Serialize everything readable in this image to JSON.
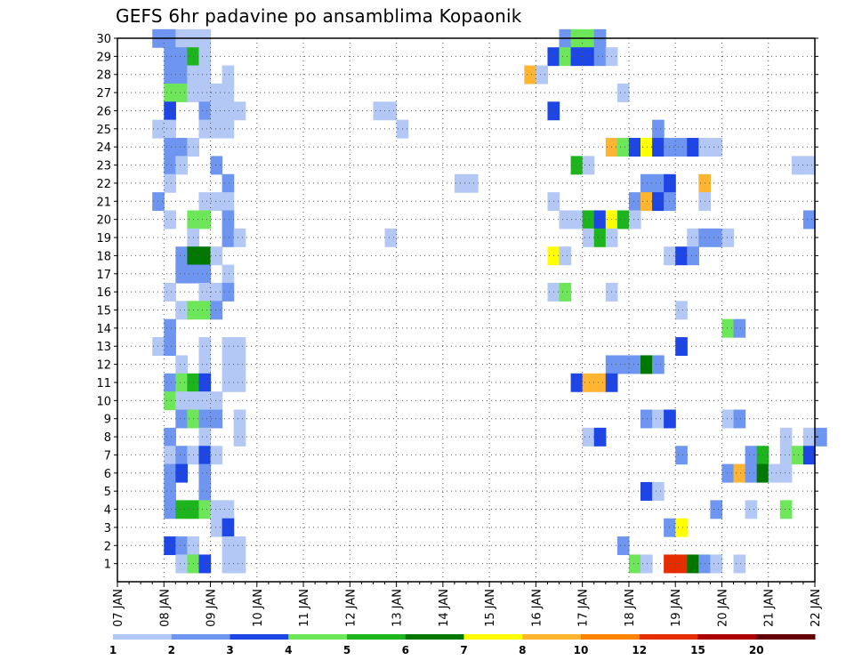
{
  "chart_data": {
    "type": "heatmap",
    "title": "GEFS 6hr padavine po ansamblima Kopaonik",
    "xlabel": "",
    "ylabel": "",
    "x_range": [
      "07 JAN 00h",
      "22 JAN 00h"
    ],
    "x_step_hours": 6,
    "x_tick_labels": [
      "07 JAN",
      "08 JAN",
      "09 JAN",
      "10 JAN",
      "11 JAN",
      "12 JAN",
      "13 JAN",
      "14 JAN",
      "15 JAN",
      "16 JAN",
      "17 JAN",
      "18 JAN",
      "19 JAN",
      "20 JAN",
      "21 JAN",
      "22 JAN"
    ],
    "y_range": [
      0,
      30
    ],
    "y_tick_labels": [
      "1",
      "2",
      "3",
      "4",
      "5",
      "6",
      "7",
      "8",
      "9",
      "10",
      "11",
      "12",
      "13",
      "14",
      "15",
      "16",
      "17",
      "18",
      "19",
      "20",
      "21",
      "22",
      "23",
      "24",
      "25",
      "26",
      "27",
      "28",
      "29",
      "30"
    ],
    "grid": true,
    "colorbar": {
      "levels": [
        1,
        2,
        3,
        4,
        5,
        6,
        7,
        8,
        10,
        12,
        15,
        20
      ],
      "level_labels": [
        "1",
        "2",
        "3",
        "4",
        "5",
        "6",
        "7",
        "8",
        "10",
        "12",
        "15",
        "20"
      ],
      "colors": [
        "#b4c8f5",
        "#6e96f0",
        "#1e46e6",
        "#6ee65a",
        "#1eb41e",
        "#007800",
        "#ffff00",
        "#ffb432",
        "#ff8200",
        "#e62d00",
        "#aa0000",
        "#640000"
      ]
    },
    "cells": [
      [
        30,
        3,
        2
      ],
      [
        30,
        4,
        2
      ],
      [
        30,
        5,
        1
      ],
      [
        30,
        6,
        1
      ],
      [
        30,
        7,
        1
      ],
      [
        30,
        38,
        2
      ],
      [
        30,
        39,
        4
      ],
      [
        30,
        40,
        4
      ],
      [
        30,
        41,
        2
      ],
      [
        29,
        4,
        2
      ],
      [
        29,
        5,
        2
      ],
      [
        29,
        6,
        5
      ],
      [
        29,
        7,
        1
      ],
      [
        29,
        37,
        3
      ],
      [
        29,
        38,
        4
      ],
      [
        29,
        39,
        3
      ],
      [
        29,
        40,
        3
      ],
      [
        29,
        41,
        2
      ],
      [
        29,
        42,
        1
      ],
      [
        28,
        4,
        2
      ],
      [
        28,
        5,
        2
      ],
      [
        28,
        6,
        1
      ],
      [
        28,
        7,
        1
      ],
      [
        28,
        9,
        1
      ],
      [
        28,
        35,
        8
      ],
      [
        28,
        36,
        1
      ],
      [
        27,
        4,
        4
      ],
      [
        27,
        5,
        4
      ],
      [
        27,
        6,
        1
      ],
      [
        27,
        7,
        1
      ],
      [
        27,
        8,
        1
      ],
      [
        27,
        9,
        1
      ],
      [
        27,
        43,
        1
      ],
      [
        26,
        4,
        3
      ],
      [
        26,
        7,
        2
      ],
      [
        26,
        8,
        1
      ],
      [
        26,
        9,
        1
      ],
      [
        26,
        10,
        1
      ],
      [
        26,
        22,
        1
      ],
      [
        26,
        23,
        1
      ],
      [
        26,
        37,
        3
      ],
      [
        25,
        3,
        1
      ],
      [
        25,
        4,
        1
      ],
      [
        25,
        7,
        1
      ],
      [
        25,
        8,
        1
      ],
      [
        25,
        9,
        1
      ],
      [
        25,
        24,
        1
      ],
      [
        25,
        46,
        2
      ],
      [
        24,
        4,
        2
      ],
      [
        24,
        5,
        2
      ],
      [
        24,
        6,
        1
      ],
      [
        24,
        42,
        8
      ],
      [
        24,
        43,
        4
      ],
      [
        24,
        44,
        3
      ],
      [
        24,
        45,
        7
      ],
      [
        24,
        46,
        3
      ],
      [
        24,
        47,
        2
      ],
      [
        24,
        48,
        2
      ],
      [
        24,
        49,
        3
      ],
      [
        24,
        50,
        1
      ],
      [
        24,
        51,
        1
      ],
      [
        23,
        4,
        2
      ],
      [
        23,
        5,
        1
      ],
      [
        23,
        8,
        2
      ],
      [
        23,
        39,
        5
      ],
      [
        23,
        40,
        1
      ],
      [
        23,
        58,
        1
      ],
      [
        23,
        59,
        1
      ],
      [
        22,
        4,
        1
      ],
      [
        22,
        9,
        2
      ],
      [
        22,
        29,
        1
      ],
      [
        22,
        30,
        1
      ],
      [
        22,
        45,
        2
      ],
      [
        22,
        46,
        2
      ],
      [
        22,
        47,
        3
      ],
      [
        22,
        50,
        8
      ],
      [
        21,
        3,
        2
      ],
      [
        21,
        7,
        1
      ],
      [
        21,
        8,
        1
      ],
      [
        21,
        9,
        1
      ],
      [
        21,
        37,
        1
      ],
      [
        21,
        44,
        2
      ],
      [
        21,
        45,
        8
      ],
      [
        21,
        46,
        3
      ],
      [
        21,
        47,
        2
      ],
      [
        21,
        50,
        1
      ],
      [
        20,
        4,
        1
      ],
      [
        20,
        6,
        4
      ],
      [
        20,
        7,
        4
      ],
      [
        20,
        9,
        2
      ],
      [
        20,
        38,
        1
      ],
      [
        20,
        39,
        1
      ],
      [
        20,
        40,
        5
      ],
      [
        20,
        41,
        3
      ],
      [
        20,
        42,
        7
      ],
      [
        20,
        43,
        5
      ],
      [
        20,
        44,
        1
      ],
      [
        20,
        59,
        2
      ],
      [
        19,
        6,
        1
      ],
      [
        19,
        9,
        2
      ],
      [
        19,
        10,
        1
      ],
      [
        19,
        23,
        1
      ],
      [
        19,
        40,
        1
      ],
      [
        19,
        41,
        5
      ],
      [
        19,
        42,
        1
      ],
      [
        19,
        49,
        1
      ],
      [
        19,
        50,
        2
      ],
      [
        19,
        51,
        2
      ],
      [
        19,
        52,
        1
      ],
      [
        18,
        5,
        2
      ],
      [
        18,
        6,
        6
      ],
      [
        18,
        7,
        6
      ],
      [
        18,
        8,
        1
      ],
      [
        18,
        37,
        7
      ],
      [
        18,
        38,
        1
      ],
      [
        18,
        47,
        1
      ],
      [
        18,
        48,
        3
      ],
      [
        18,
        49,
        2
      ],
      [
        17,
        5,
        2
      ],
      [
        17,
        6,
        2
      ],
      [
        17,
        7,
        2
      ],
      [
        17,
        9,
        1
      ],
      [
        16,
        4,
        1
      ],
      [
        16,
        7,
        1
      ],
      [
        16,
        8,
        1
      ],
      [
        16,
        9,
        2
      ],
      [
        16,
        37,
        1
      ],
      [
        16,
        38,
        4
      ],
      [
        16,
        42,
        1
      ],
      [
        15,
        5,
        1
      ],
      [
        15,
        6,
        4
      ],
      [
        15,
        7,
        4
      ],
      [
        15,
        8,
        2
      ],
      [
        15,
        48,
        1
      ],
      [
        14,
        4,
        2
      ],
      [
        14,
        52,
        4
      ],
      [
        14,
        53,
        2
      ],
      [
        13,
        3,
        1
      ],
      [
        13,
        4,
        2
      ],
      [
        13,
        7,
        1
      ],
      [
        13,
        9,
        1
      ],
      [
        13,
        10,
        1
      ],
      [
        13,
        48,
        3
      ],
      [
        12,
        5,
        1
      ],
      [
        12,
        7,
        1
      ],
      [
        12,
        9,
        1
      ],
      [
        12,
        10,
        1
      ],
      [
        12,
        42,
        2
      ],
      [
        12,
        43,
        2
      ],
      [
        12,
        44,
        2
      ],
      [
        12,
        45,
        6
      ],
      [
        12,
        46,
        2
      ],
      [
        11,
        4,
        2
      ],
      [
        11,
        5,
        4
      ],
      [
        11,
        6,
        5
      ],
      [
        11,
        7,
        3
      ],
      [
        11,
        9,
        1
      ],
      [
        11,
        10,
        1
      ],
      [
        11,
        39,
        3
      ],
      [
        11,
        40,
        8
      ],
      [
        11,
        41,
        8
      ],
      [
        11,
        42,
        3
      ],
      [
        10,
        4,
        4
      ],
      [
        10,
        5,
        1
      ],
      [
        10,
        6,
        1
      ],
      [
        10,
        7,
        1
      ],
      [
        10,
        8,
        1
      ],
      [
        9,
        5,
        2
      ],
      [
        9,
        6,
        4
      ],
      [
        9,
        7,
        2
      ],
      [
        9,
        8,
        2
      ],
      [
        9,
        10,
        1
      ],
      [
        9,
        45,
        2
      ],
      [
        9,
        46,
        1
      ],
      [
        9,
        47,
        3
      ],
      [
        9,
        52,
        1
      ],
      [
        9,
        53,
        2
      ],
      [
        8,
        4,
        2
      ],
      [
        8,
        7,
        1
      ],
      [
        8,
        10,
        1
      ],
      [
        8,
        40,
        1
      ],
      [
        8,
        41,
        3
      ],
      [
        8,
        57,
        1
      ],
      [
        8,
        59,
        1
      ],
      [
        8,
        60,
        2
      ],
      [
        7,
        4,
        1
      ],
      [
        7,
        5,
        2
      ],
      [
        7,
        6,
        1
      ],
      [
        7,
        7,
        3
      ],
      [
        7,
        8,
        1
      ],
      [
        7,
        48,
        2
      ],
      [
        7,
        54,
        2
      ],
      [
        7,
        55,
        5
      ],
      [
        7,
        57,
        1
      ],
      [
        7,
        58,
        4
      ],
      [
        7,
        59,
        3
      ],
      [
        6,
        4,
        2
      ],
      [
        6,
        5,
        3
      ],
      [
        6,
        7,
        2
      ],
      [
        6,
        52,
        2
      ],
      [
        6,
        53,
        8
      ],
      [
        6,
        54,
        2
      ],
      [
        6,
        55,
        6
      ],
      [
        6,
        56,
        1
      ],
      [
        6,
        57,
        1
      ],
      [
        5,
        4,
        2
      ],
      [
        5,
        7,
        2
      ],
      [
        5,
        45,
        3
      ],
      [
        5,
        46,
        1
      ],
      [
        4,
        4,
        2
      ],
      [
        4,
        5,
        5
      ],
      [
        4,
        6,
        5
      ],
      [
        4,
        7,
        4
      ],
      [
        4,
        8,
        1
      ],
      [
        4,
        9,
        1
      ],
      [
        4,
        51,
        2
      ],
      [
        4,
        54,
        1
      ],
      [
        4,
        57,
        4
      ],
      [
        3,
        8,
        1
      ],
      [
        3,
        9,
        3
      ],
      [
        3,
        47,
        2
      ],
      [
        3,
        48,
        7
      ],
      [
        2,
        4,
        3
      ],
      [
        2,
        5,
        2
      ],
      [
        2,
        6,
        1
      ],
      [
        2,
        9,
        1
      ],
      [
        2,
        10,
        1
      ],
      [
        2,
        43,
        2
      ],
      [
        1,
        5,
        1
      ],
      [
        1,
        6,
        4
      ],
      [
        1,
        7,
        3
      ],
      [
        1,
        9,
        1
      ],
      [
        1,
        10,
        1
      ],
      [
        1,
        44,
        4
      ],
      [
        1,
        45,
        1
      ],
      [
        1,
        47,
        10
      ],
      [
        1,
        48,
        10
      ],
      [
        1,
        49,
        6
      ],
      [
        1,
        50,
        2
      ],
      [
        1,
        51,
        1
      ],
      [
        1,
        53,
        1
      ]
    ]
  }
}
